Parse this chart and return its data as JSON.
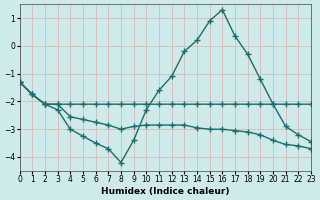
{
  "xlabel": "Humidex (Indice chaleur)",
  "bg_color": "#ceeaea",
  "grid_color": "#d8b8b8",
  "line_color": "#1a6e6e",
  "xlim": [
    0,
    23
  ],
  "ylim": [
    -4.5,
    1.5
  ],
  "xticks": [
    0,
    1,
    2,
    3,
    4,
    5,
    6,
    7,
    8,
    9,
    10,
    11,
    12,
    13,
    14,
    15,
    16,
    17,
    18,
    19,
    20,
    21,
    22,
    23
  ],
  "yticks": [
    -4,
    -3,
    -2,
    -1,
    0,
    1
  ],
  "line1_x": [
    0,
    1,
    2,
    3,
    4,
    5,
    6,
    7,
    8,
    9,
    10,
    11,
    12,
    13,
    14,
    15,
    16,
    17,
    18,
    19,
    20,
    21,
    22,
    23
  ],
  "line1_y": [
    -1.3,
    -1.75,
    -2.1,
    -2.1,
    -2.1,
    -2.1,
    -2.1,
    -2.1,
    -2.1,
    -2.1,
    -2.1,
    -2.1,
    -2.1,
    -2.1,
    -2.1,
    -2.1,
    -2.1,
    -2.1,
    -2.1,
    -2.1,
    -2.1,
    -2.1,
    -2.1,
    -2.1
  ],
  "line2_x": [
    0,
    1,
    2,
    3,
    4,
    5,
    6,
    7,
    8,
    9,
    10,
    11,
    12,
    13,
    14,
    15,
    16,
    17,
    18,
    19,
    20,
    21,
    22,
    23
  ],
  "line2_y": [
    -1.3,
    -1.75,
    -2.1,
    -2.3,
    -3.0,
    -3.25,
    -3.5,
    -3.7,
    -4.2,
    -3.4,
    -2.3,
    -1.6,
    -1.1,
    -0.2,
    0.2,
    0.9,
    1.3,
    0.35,
    -0.3,
    -1.2,
    -2.1,
    -2.9,
    -3.2,
    -3.45
  ],
  "line3_x": [
    0,
    1,
    2,
    3,
    4,
    5,
    6,
    7,
    8,
    9,
    10,
    11,
    12,
    13,
    14,
    15,
    16,
    17,
    18,
    19,
    20,
    21,
    22,
    23
  ],
  "line3_y": [
    -1.3,
    -1.75,
    -2.1,
    -2.1,
    -2.55,
    -2.65,
    -2.75,
    -2.85,
    -3.0,
    -2.9,
    -2.85,
    -2.85,
    -2.85,
    -2.85,
    -2.95,
    -3.0,
    -3.0,
    -3.05,
    -3.1,
    -3.2,
    -3.4,
    -3.55,
    -3.6,
    -3.7
  ],
  "marker": "+",
  "markersize": 4,
  "linewidth": 1.0
}
